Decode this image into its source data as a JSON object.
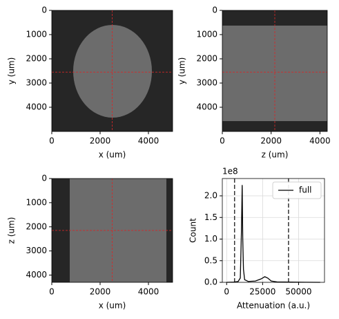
{
  "chart_data": [
    {
      "type": "image",
      "xlabel": "x (um)",
      "ylabel": "y (um)",
      "xlim": [
        0,
        5000
      ],
      "ylim": [
        5000,
        0
      ],
      "xticks": [
        0,
        2000,
        4000
      ],
      "yticks": [
        0,
        1000,
        2000,
        3000,
        4000
      ],
      "crosshair_x": 2500,
      "crosshair_y": 2550,
      "crosshair_color": "#d62728"
    },
    {
      "type": "image",
      "xlabel": "z (um)",
      "ylabel": "y (um)",
      "xlim": [
        0,
        4300
      ],
      "ylim": [
        5000,
        0
      ],
      "xticks": [
        0,
        2000,
        4000
      ],
      "yticks": [
        0,
        1000,
        2000,
        3000,
        4000
      ],
      "crosshair_x": 2150,
      "crosshair_y": 2550,
      "crosshair_color": "#d62728"
    },
    {
      "type": "image",
      "xlabel": "x (um)",
      "ylabel": "z (um)",
      "xlim": [
        0,
        5000
      ],
      "ylim": [
        4300,
        0
      ],
      "xticks": [
        0,
        2000,
        4000
      ],
      "yticks": [
        0,
        1000,
        2000,
        3000,
        4000
      ],
      "crosshair_x": 2500,
      "crosshair_y": 2150,
      "crosshair_color": "#d62728"
    },
    {
      "type": "line",
      "xlabel": "Attenuation (a.u.)",
      "ylabel": "Count",
      "offset_text": "1e8",
      "xlim": [
        -3000,
        68000
      ],
      "ylim": [
        0,
        2.4
      ],
      "xticks": [
        0,
        25000,
        50000
      ],
      "yticks": [
        {
          "value": 0,
          "label": "0.0"
        },
        0.5,
        {
          "value": 1,
          "label": "1.0"
        },
        1.5,
        {
          "value": 2,
          "label": "2.0"
        }
      ],
      "grid": true,
      "legend": "upper right",
      "vlines": [
        5500,
        43000
      ],
      "x": [
        0,
        5000,
        8000,
        9500,
        10300,
        10800,
        11200,
        11700,
        12500,
        15000,
        20000,
        24000,
        26500,
        28500,
        31000,
        35000,
        45000,
        55000,
        65000
      ],
      "series": [
        {
          "name": "full",
          "color": "#000000",
          "values": [
            0,
            0.005,
            0.02,
            0.1,
            1.2,
            2.25,
            1.0,
            0.3,
            0.06,
            0.02,
            0.03,
            0.08,
            0.13,
            0.1,
            0.03,
            0.01,
            0.005,
            0.002,
            0
          ]
        }
      ]
    }
  ]
}
